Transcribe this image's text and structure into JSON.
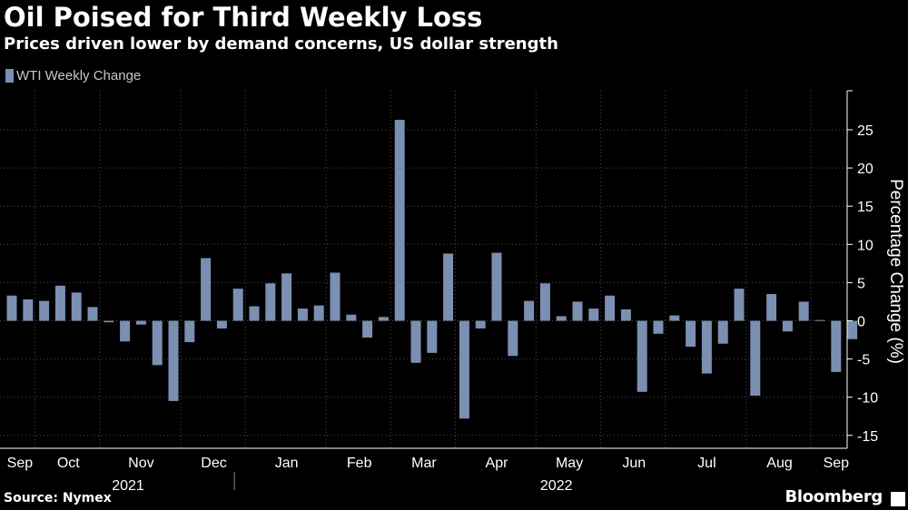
{
  "header": {
    "title": "Oil Poised for Third Weekly Loss",
    "subtitle": "Prices driven lower by demand concerns, US dollar strength"
  },
  "footer": {
    "source": "Source: Nymex",
    "brand": "Bloomberg"
  },
  "colors": {
    "background": "#000000",
    "bar": "#7b8fb2",
    "grid": "#4a4a4a",
    "text": "#ffffff",
    "axis_text": "#c8c8c8"
  },
  "chart_data": {
    "type": "bar",
    "title": "Oil Poised for Third Weekly Loss",
    "subtitle": "Prices driven lower by demand concerns, US dollar strength",
    "legend": [
      "WTI Weekly Change"
    ],
    "legend_position": "top-left",
    "ylabel": "Percentage Change (%)",
    "yaxis_position": "right",
    "ylim": [
      -16,
      30
    ],
    "yticks": [
      -15,
      -10,
      -5,
      0,
      5,
      10,
      15,
      20,
      25
    ],
    "grid": true,
    "month_labels": [
      "Sep",
      "Oct",
      "Nov",
      "Dec",
      "Jan",
      "Feb",
      "Mar",
      "Apr",
      "May",
      "Jun",
      "Jul",
      "Aug",
      "Sep"
    ],
    "month_start_week": [
      0,
      2,
      6,
      11,
      15,
      20,
      24,
      28,
      33,
      37,
      41,
      46,
      50
    ],
    "year_labels": [
      {
        "label": "2021",
        "start_week": 0
      },
      {
        "label": "2022",
        "start_week": 15
      }
    ],
    "series": [
      {
        "name": "WTI Weekly Change",
        "values": [
          3.3,
          2.8,
          2.6,
          4.6,
          3.7,
          1.8,
          -0.2,
          -2.7,
          -0.5,
          -5.8,
          -10.5,
          -2.8,
          8.2,
          -1.0,
          4.2,
          1.9,
          4.9,
          6.2,
          1.6,
          2.0,
          6.3,
          0.8,
          -2.2,
          0.5,
          26.3,
          -5.5,
          -4.2,
          8.8,
          -12.8,
          -1.0,
          8.9,
          -4.6,
          2.6,
          4.9,
          0.6,
          2.5,
          1.6,
          3.3,
          1.5,
          -9.3,
          -1.7,
          0.7,
          -3.4,
          -6.9,
          -3.0,
          4.2,
          -9.8,
          3.5,
          -1.4,
          2.5,
          0.1,
          -6.7,
          -2.4
        ]
      }
    ]
  }
}
